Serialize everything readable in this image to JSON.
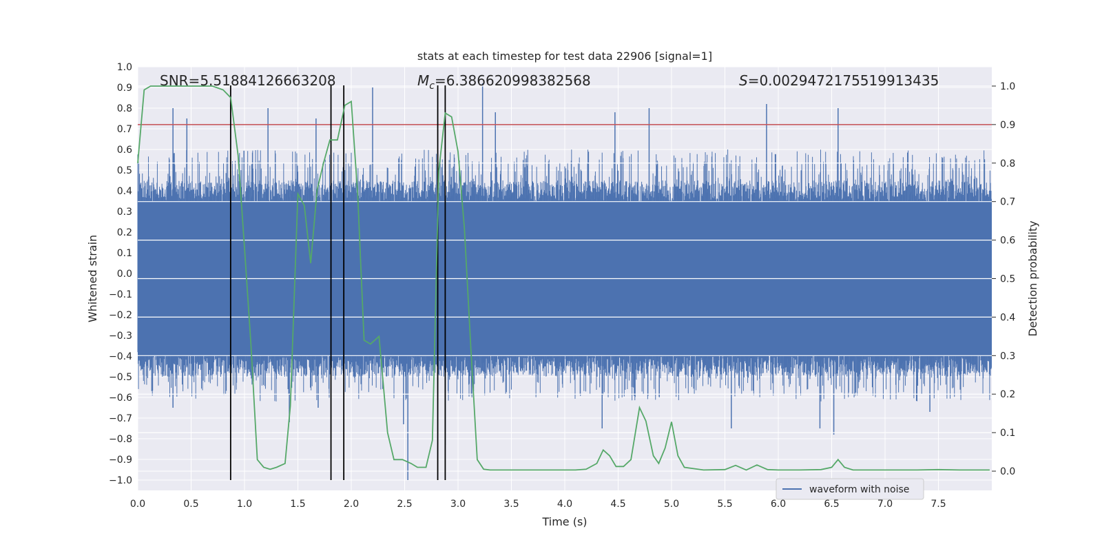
{
  "chart_data": {
    "type": "line",
    "title": "stats at each timestep for test data 22906 [signal=1]",
    "xlabel": "Time (s)",
    "ylabel": "Whitened strain",
    "y2label": "Detection probability",
    "xlim": [
      0.0,
      8.0
    ],
    "ylim": [
      -1.05,
      1.0
    ],
    "y2lim": [
      -0.05,
      1.05
    ],
    "xticks": [
      0.0,
      0.5,
      1.0,
      1.5,
      2.0,
      2.5,
      3.0,
      3.5,
      4.0,
      4.5,
      5.0,
      5.5,
      6.0,
      6.5,
      7.0,
      7.5
    ],
    "xtick_labels": [
      "0.0",
      "0.5",
      "1.0",
      "1.5",
      "2.0",
      "2.5",
      "3.0",
      "3.5",
      "4.0",
      "4.5",
      "5.0",
      "5.5",
      "6.0",
      "6.5",
      "7.0",
      "7.5"
    ],
    "yticks": [
      -1.0,
      -0.9,
      -0.8,
      -0.7,
      -0.6,
      -0.5,
      -0.4,
      -0.3,
      -0.2,
      -0.1,
      0.0,
      0.1,
      0.2,
      0.3,
      0.4,
      0.5,
      0.6,
      0.7,
      0.8,
      0.9,
      1.0
    ],
    "ytick_labels": [
      "−1.0",
      "−0.9",
      "−0.8",
      "−0.7",
      "−0.6",
      "−0.5",
      "−0.4",
      "−0.3",
      "−0.2",
      "−0.1",
      "0.0",
      "0.1",
      "0.2",
      "0.3",
      "0.4",
      "0.5",
      "0.6",
      "0.7",
      "0.8",
      "0.9",
      "1.0"
    ],
    "y2ticks": [
      0.0,
      0.1,
      0.2,
      0.3,
      0.4,
      0.5,
      0.6,
      0.7,
      0.8,
      0.9,
      1.0
    ],
    "y2tick_labels": [
      "0.0",
      "0.1",
      "0.2",
      "0.3",
      "0.4",
      "0.5",
      "0.6",
      "0.7",
      "0.8",
      "0.9",
      "1.0"
    ],
    "grid": true,
    "legend": {
      "position": "bottom-right",
      "entries": [
        {
          "label": "waveform with noise",
          "color": "#4c72b0"
        }
      ]
    },
    "annotations": [
      {
        "prefix": "SNR=",
        "italic": "",
        "sub": "",
        "value": "5.51884126663208"
      },
      {
        "prefix": "",
        "italic": "M",
        "sub": "c",
        "value": "=6.386620998382568"
      },
      {
        "prefix": "",
        "italic": "S",
        "sub": "",
        "value": "=0.0029472175519913435"
      }
    ],
    "series": [
      {
        "name": "waveform with noise",
        "kind": "noise-envelope",
        "color": "#4c72b0",
        "core_range": [
          -0.4,
          0.35
        ],
        "typical_peak": 0.6,
        "notable_peaks": [
          {
            "x": 0.33,
            "y": 0.8
          },
          {
            "x": 0.46,
            "y": 0.75
          },
          {
            "x": 1.22,
            "y": 0.8
          },
          {
            "x": 1.67,
            "y": 0.75
          },
          {
            "x": 2.2,
            "y": 0.9
          },
          {
            "x": 3.23,
            "y": 0.92
          },
          {
            "x": 3.35,
            "y": 0.78
          },
          {
            "x": 4.47,
            "y": 0.78
          },
          {
            "x": 4.79,
            "y": 0.8
          },
          {
            "x": 5.89,
            "y": 0.82
          },
          {
            "x": 6.56,
            "y": 0.8
          }
        ],
        "notable_troughs": [
          {
            "x": 0.33,
            "y": -0.65
          },
          {
            "x": 1.42,
            "y": -0.72
          },
          {
            "x": 1.69,
            "y": -0.65
          },
          {
            "x": 2.49,
            "y": -0.73
          },
          {
            "x": 2.53,
            "y": -1.0
          },
          {
            "x": 2.88,
            "y": -0.83
          },
          {
            "x": 4.35,
            "y": -0.75
          },
          {
            "x": 5.56,
            "y": -0.75
          },
          {
            "x": 6.39,
            "y": -0.75
          },
          {
            "x": 6.52,
            "y": -0.78
          },
          {
            "x": 7.42,
            "y": -0.67
          }
        ]
      },
      {
        "name": "detection probability",
        "axis": "right",
        "color": "#55a868",
        "x": [
          0.0,
          0.06,
          0.12,
          0.2,
          0.3,
          0.5,
          0.7,
          0.8,
          0.87,
          0.94,
          1.0,
          1.06,
          1.12,
          1.18,
          1.24,
          1.3,
          1.38,
          1.43,
          1.5,
          1.56,
          1.62,
          1.68,
          1.74,
          1.8,
          1.87,
          1.94,
          2.0,
          2.06,
          2.12,
          2.18,
          2.26,
          2.34,
          2.4,
          2.48,
          2.56,
          2.62,
          2.7,
          2.76,
          2.82,
          2.88,
          2.94,
          3.0,
          3.06,
          3.12,
          3.18,
          3.24,
          3.3,
          3.5,
          3.7,
          3.9,
          4.1,
          4.2,
          4.3,
          4.36,
          4.42,
          4.48,
          4.55,
          4.62,
          4.7,
          4.76,
          4.83,
          4.88,
          4.94,
          5.0,
          5.06,
          5.12,
          5.3,
          5.5,
          5.6,
          5.7,
          5.8,
          5.9,
          6.0,
          6.2,
          6.4,
          6.5,
          6.56,
          6.62,
          6.7,
          7.0,
          7.3,
          7.5,
          7.7,
          7.9,
          7.98
        ],
        "y": [
          0.8,
          0.99,
          1.0,
          1.0,
          1.0,
          1.0,
          1.0,
          0.99,
          0.97,
          0.82,
          0.58,
          0.33,
          0.03,
          0.01,
          0.005,
          0.01,
          0.02,
          0.17,
          0.72,
          0.69,
          0.54,
          0.73,
          0.8,
          0.86,
          0.86,
          0.95,
          0.96,
          0.72,
          0.34,
          0.33,
          0.35,
          0.1,
          0.03,
          0.03,
          0.02,
          0.01,
          0.01,
          0.08,
          0.78,
          0.93,
          0.92,
          0.83,
          0.63,
          0.32,
          0.03,
          0.005,
          0.003,
          0.003,
          0.003,
          0.003,
          0.003,
          0.005,
          0.02,
          0.055,
          0.04,
          0.012,
          0.012,
          0.03,
          0.165,
          0.13,
          0.04,
          0.02,
          0.06,
          0.128,
          0.04,
          0.01,
          0.003,
          0.004,
          0.015,
          0.003,
          0.016,
          0.004,
          0.003,
          0.003,
          0.004,
          0.01,
          0.03,
          0.01,
          0.003,
          0.003,
          0.003,
          0.004,
          0.003,
          0.003,
          0.003
        ]
      },
      {
        "name": "threshold",
        "axis": "right",
        "kind": "hline",
        "color": "#c44e52",
        "y": 0.9
      }
    ],
    "vertical_markers": [
      0.87,
      1.81,
      1.93,
      2.81,
      2.88
    ],
    "vertical_marker_color": "#000000"
  }
}
